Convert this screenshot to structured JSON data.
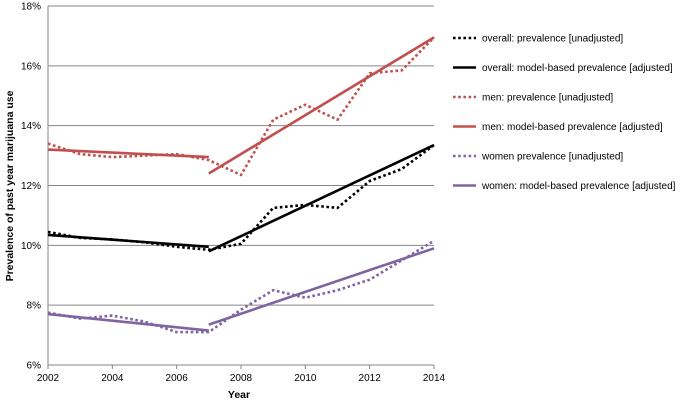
{
  "chart_data": {
    "type": "line",
    "xlabel": "Year",
    "ylabel": "Prevalence of past year marijuana use",
    "xlim": [
      2002,
      2014
    ],
    "ylim": [
      6,
      18
    ],
    "x_ticks": [
      "2002",
      "2004",
      "2006",
      "2008",
      "2010",
      "2012",
      "2014"
    ],
    "y_ticks": [
      "6%",
      "8%",
      "10%",
      "12%",
      "14%",
      "16%",
      "18%"
    ],
    "grid": "horizontal",
    "legend_position": "right",
    "series": [
      {
        "name": "overall: prevalence [unadjusted]",
        "color": "#000000",
        "style": "dotted",
        "points": [
          [
            2002,
            10.45
          ],
          [
            2003,
            10.25
          ],
          [
            2004,
            10.2
          ],
          [
            2005,
            10.1
          ],
          [
            2006,
            9.95
          ],
          [
            2007,
            9.85
          ],
          [
            2008,
            10.05
          ],
          [
            2009,
            11.25
          ],
          [
            2010,
            11.35
          ],
          [
            2011,
            11.25
          ],
          [
            2012,
            12.15
          ],
          [
            2013,
            12.55
          ],
          [
            2014,
            13.35
          ]
        ]
      },
      {
        "name": "overall: model-based prevalence [adjusted]",
        "color": "#000000",
        "style": "solid",
        "segments": [
          [
            [
              2002,
              10.35
            ],
            [
              2007,
              9.95
            ]
          ],
          [
            [
              2007,
              9.8
            ],
            [
              2014,
              13.35
            ]
          ]
        ]
      },
      {
        "name": "men: prevalence [unadjusted]",
        "color": "#c0504d",
        "style": "dotted",
        "points": [
          [
            2002,
            13.4
          ],
          [
            2003,
            13.05
          ],
          [
            2004,
            12.95
          ],
          [
            2005,
            13.0
          ],
          [
            2006,
            13.05
          ],
          [
            2007,
            12.85
          ],
          [
            2008,
            12.35
          ],
          [
            2009,
            14.2
          ],
          [
            2010,
            14.7
          ],
          [
            2011,
            14.2
          ],
          [
            2012,
            15.75
          ],
          [
            2013,
            15.85
          ],
          [
            2014,
            16.95
          ]
        ]
      },
      {
        "name": "men: model-based prevalence [adjusted]",
        "color": "#c0504d",
        "style": "solid",
        "segments": [
          [
            [
              2002,
              13.2
            ],
            [
              2007,
              12.95
            ]
          ],
          [
            [
              2007,
              12.4
            ],
            [
              2014,
              16.95
            ]
          ]
        ]
      },
      {
        "name": "women prevalence [unadjusted]",
        "color": "#8064a2",
        "style": "dotted",
        "points": [
          [
            2002,
            7.75
          ],
          [
            2003,
            7.55
          ],
          [
            2004,
            7.65
          ],
          [
            2005,
            7.45
          ],
          [
            2006,
            7.1
          ],
          [
            2007,
            7.1
          ],
          [
            2008,
            7.85
          ],
          [
            2009,
            8.5
          ],
          [
            2010,
            8.25
          ],
          [
            2011,
            8.5
          ],
          [
            2012,
            8.85
          ],
          [
            2013,
            9.5
          ],
          [
            2014,
            10.15
          ]
        ]
      },
      {
        "name": "women: model-based prevalence [adjusted]",
        "color": "#8064a2",
        "style": "solid",
        "segments": [
          [
            [
              2002,
              7.7
            ],
            [
              2007,
              7.15
            ]
          ],
          [
            [
              2007,
              7.35
            ],
            [
              2014,
              9.9
            ]
          ]
        ]
      }
    ]
  }
}
